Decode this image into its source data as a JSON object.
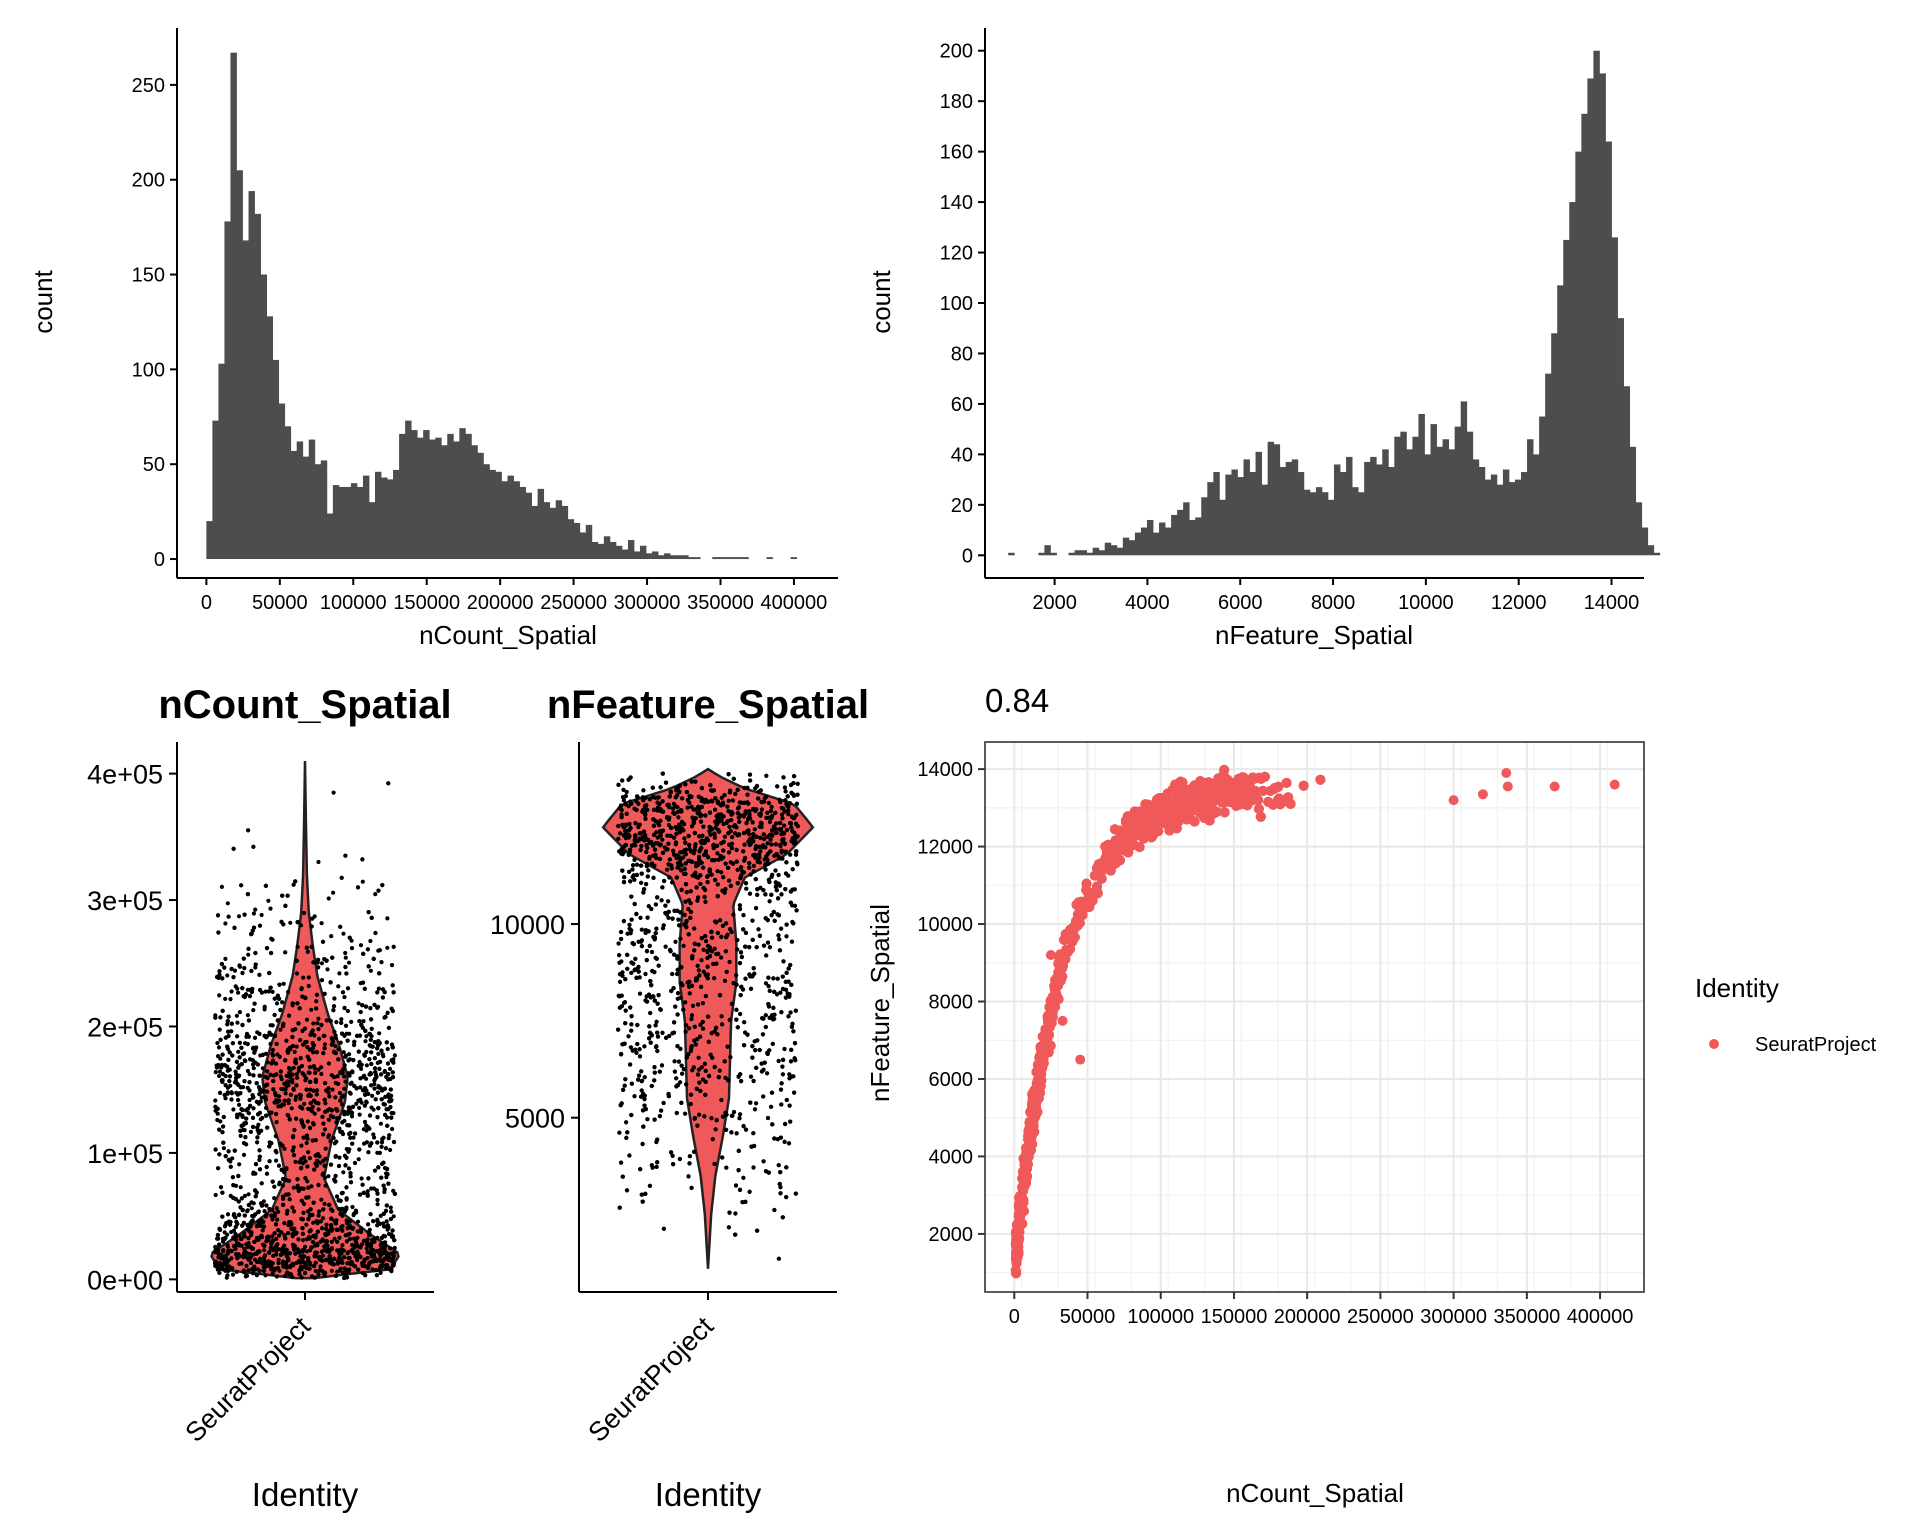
{
  "colors": {
    "bar": "#4d4d4d",
    "violin": "#f0595a",
    "point": "#f0595a",
    "grid": "#e8e8e8",
    "axis": "#000000",
    "jitter": "#000000"
  },
  "chart_data": [
    {
      "id": "hist_count",
      "type": "bar",
      "subtype": "histogram",
      "xlabel": "nCount_Spatial",
      "ylabel": "count",
      "xlim": [
        -20000,
        430000
      ],
      "ylim": [
        -10,
        280
      ],
      "xticks": [
        0,
        50000,
        100000,
        150000,
        200000,
        250000,
        300000,
        350000,
        400000
      ],
      "xtick_labels": [
        "0",
        "50000",
        "100000",
        "150000",
        "200000",
        "250000",
        "300000",
        "350000",
        "400000"
      ],
      "yticks": [
        0,
        50,
        100,
        150,
        200,
        250
      ],
      "bin_start": 0,
      "bin_width": 4100,
      "counts": [
        20,
        73,
        103,
        178,
        267,
        205,
        168,
        194,
        182,
        150,
        128,
        105,
        82,
        70,
        57,
        62,
        54,
        63,
        50,
        52,
        24,
        39,
        38,
        38,
        40,
        38,
        44,
        30,
        46,
        43,
        42,
        47,
        66,
        73,
        68,
        64,
        68,
        63,
        64,
        60,
        66,
        62,
        69,
        66,
        60,
        56,
        50,
        47,
        46,
        41,
        44,
        41,
        38,
        35,
        28,
        37,
        30,
        27,
        31,
        28,
        21,
        19,
        14,
        18,
        9,
        8,
        12,
        9,
        7,
        5,
        10,
        4,
        7,
        3,
        4,
        2,
        3,
        2,
        2,
        2,
        1,
        1,
        0,
        0,
        1,
        1,
        1,
        1,
        1,
        1,
        0,
        0,
        0,
        1,
        0,
        0,
        0,
        1,
        0,
        0,
        0
      ]
    },
    {
      "id": "hist_feature",
      "type": "bar",
      "subtype": "histogram",
      "xlabel": "nFeature_Spatial",
      "ylabel": "count",
      "xlim": [
        500,
        14700
      ],
      "ylim": [
        -9,
        209
      ],
      "xticks": [
        2000,
        4000,
        6000,
        8000,
        10000,
        12000,
        14000
      ],
      "xtick_labels": [
        "2000",
        "4000",
        "6000",
        "8000",
        "10000",
        "12000",
        "14000"
      ],
      "yticks": [
        0,
        20,
        40,
        60,
        80,
        100,
        120,
        140,
        160,
        180,
        200
      ],
      "ytick_labels": [
        "0",
        "20",
        "40",
        "60",
        "80",
        "100",
        "120",
        "140",
        "160",
        "180",
        "200"
      ],
      "bin_start": 1000,
      "bin_width": 130,
      "counts": [
        1,
        0,
        0,
        0,
        0,
        1,
        4,
        1,
        0,
        0,
        1,
        2,
        2,
        1,
        3,
        2,
        5,
        4,
        3,
        7,
        6,
        9,
        11,
        14,
        9,
        13,
        11,
        16,
        18,
        21,
        14,
        15,
        23,
        29,
        33,
        22,
        32,
        34,
        31,
        38,
        33,
        41,
        28,
        45,
        44,
        35,
        37,
        38,
        33,
        26,
        25,
        27,
        25,
        22,
        36,
        33,
        39,
        27,
        25,
        37,
        39,
        36,
        42,
        35,
        47,
        49,
        42,
        47,
        56,
        40,
        52,
        43,
        46,
        42,
        51,
        61,
        49,
        38,
        35,
        30,
        32,
        28,
        34,
        29,
        30,
        33,
        46,
        40,
        55,
        72,
        88,
        107,
        125,
        140,
        160,
        175,
        189,
        200,
        191,
        164,
        126,
        94,
        67,
        43,
        21,
        11,
        4,
        1
      ]
    },
    {
      "id": "violin_count",
      "type": "violin",
      "title": "nCount_Spatial",
      "xlabel": "Identity",
      "categories": [
        "SeuratProject"
      ],
      "ylim": [
        -10000,
        425000
      ],
      "yticks": [
        0,
        100000,
        200000,
        300000,
        400000
      ],
      "ytick_labels": [
        "0e+00",
        "1e+05",
        "2e+05",
        "3e+05",
        "4e+05"
      ],
      "data_min": 1000,
      "data_max": 410000,
      "density_profile": [
        [
          1000,
          0.1
        ],
        [
          8000,
          0.9
        ],
        [
          20000,
          1.0
        ],
        [
          35000,
          0.7
        ],
        [
          55000,
          0.35
        ],
        [
          80000,
          0.2
        ],
        [
          110000,
          0.28
        ],
        [
          140000,
          0.42
        ],
        [
          160000,
          0.45
        ],
        [
          185000,
          0.36
        ],
        [
          210000,
          0.24
        ],
        [
          240000,
          0.13
        ],
        [
          265000,
          0.08
        ],
        [
          290000,
          0.04
        ],
        [
          320000,
          0.02
        ],
        [
          360000,
          0.01
        ],
        [
          410000,
          0.0
        ]
      ],
      "jitter_points": 3200
    },
    {
      "id": "violin_feature",
      "type": "violin",
      "title": "nFeature_Spatial",
      "xlabel": "Identity",
      "categories": [
        "SeuratProject"
      ],
      "ylim": [
        500,
        14700
      ],
      "yticks": [
        5000,
        10000
      ],
      "ytick_labels": [
        "5000",
        "10000"
      ],
      "data_min": 1100,
      "data_max": 14000,
      "density_profile": [
        [
          1100,
          0.0
        ],
        [
          2500,
          0.03
        ],
        [
          3500,
          0.07
        ],
        [
          4500,
          0.14
        ],
        [
          5500,
          0.2
        ],
        [
          6500,
          0.21
        ],
        [
          7500,
          0.22
        ],
        [
          8500,
          0.27
        ],
        [
          9500,
          0.27
        ],
        [
          10500,
          0.24
        ],
        [
          11200,
          0.35
        ],
        [
          11800,
          0.75
        ],
        [
          12500,
          1.0
        ],
        [
          13100,
          0.82
        ],
        [
          13500,
          0.35
        ],
        [
          13800,
          0.12
        ],
        [
          14000,
          0.0
        ]
      ],
      "jitter_points": 3200
    },
    {
      "id": "scatter",
      "type": "scatter",
      "title": "0.84",
      "xlabel": "nCount_Spatial",
      "ylabel": "nFeature_Spatial",
      "xlim": [
        -20000,
        430000
      ],
      "ylim": [
        500,
        14700
      ],
      "xticks": [
        0,
        50000,
        100000,
        150000,
        200000,
        250000,
        300000,
        350000,
        400000
      ],
      "xtick_labels": [
        "0",
        "50000",
        "100000",
        "150000",
        "200000",
        "250000",
        "300000",
        "350000",
        "400000"
      ],
      "yticks": [
        2000,
        4000,
        6000,
        8000,
        10000,
        12000,
        14000
      ],
      "ytick_labels": [
        "2000",
        "4000",
        "6000",
        "8000",
        "10000",
        "12000",
        "14000"
      ],
      "legend": {
        "title": "Identity",
        "entries": [
          "SeuratProject"
        ],
        "position": "right"
      },
      "outliers": [
        [
          369000,
          13550
        ],
        [
          410000,
          13600
        ],
        [
          336000,
          13900
        ],
        [
          337000,
          13550
        ],
        [
          320000,
          13350
        ],
        [
          300000,
          13200
        ],
        [
          45000,
          6500
        ],
        [
          33000,
          7500
        ],
        [
          25000,
          9200
        ]
      ],
      "point_count": 3200
    }
  ]
}
